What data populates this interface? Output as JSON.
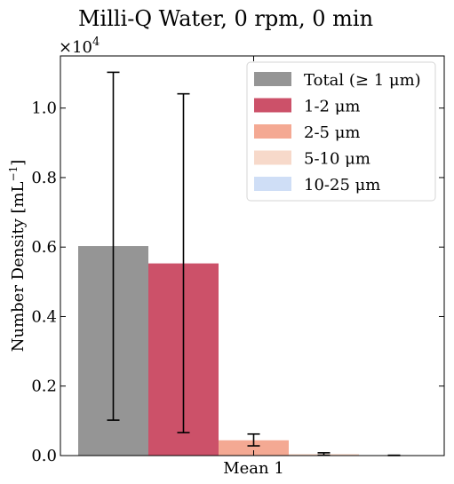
{
  "chart_data": {
    "type": "bar",
    "title": "Milli-Q Water, 0 rpm, 0 min",
    "ylabel": "Number Density [mL⁻¹]",
    "ylabel_base": "Number Density [mL",
    "ylabel_sup": "−1",
    "ylabel_close": "]",
    "y_scale_label": "×10",
    "y_scale_exp": "4",
    "ylim": [
      0,
      11500
    ],
    "categories": [
      "Mean 1"
    ],
    "yticks": [
      0,
      2000,
      4000,
      6000,
      8000,
      10000
    ],
    "ytick_labels": [
      "0.0",
      "0.2",
      "0.4",
      "0.6",
      "0.8",
      "1.0"
    ],
    "legend_position": "top-right",
    "series": [
      {
        "name": "Total (≥ 1 μm)",
        "value": 6030,
        "err_low": 1020,
        "err_high": 11030,
        "color": "#959595"
      },
      {
        "name": "1-2 μm",
        "value": 5530,
        "err_low": 660,
        "err_high": 10410,
        "color": "#cc5169"
      },
      {
        "name": "2-5 μm",
        "value": 440,
        "err_low": 280,
        "err_high": 620,
        "color": "#f4a993"
      },
      {
        "name": "5-10 μm",
        "value": 45,
        "err_low": 10,
        "err_high": 80,
        "color": "#f7d9ca"
      },
      {
        "name": "10-25 μm",
        "value": 5,
        "err_low": 2,
        "err_high": 10,
        "color": "#cfdef6"
      }
    ]
  }
}
